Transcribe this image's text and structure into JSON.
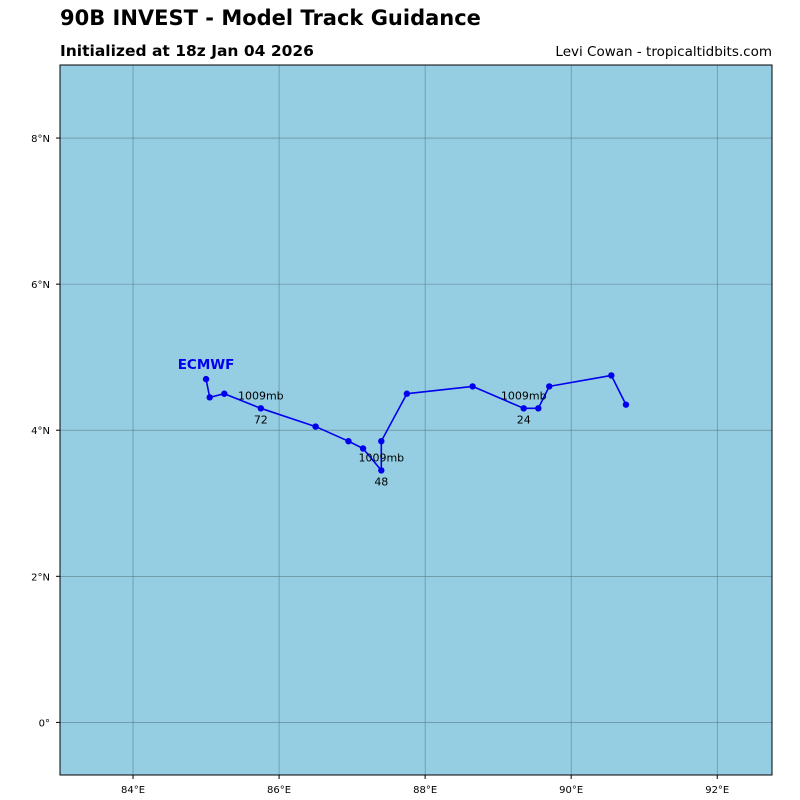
{
  "header": {
    "title": "90B INVEST - Model Track Guidance",
    "initialized": "Initialized at 18z Jan 04 2026",
    "credit": "Levi Cowan - tropicaltidbits.com"
  },
  "colors": {
    "ocean": "#95cee3",
    "track": "#0000ee",
    "grid": "#5f7f8a"
  },
  "chart_data": {
    "type": "map-track",
    "lon_range": [
      83.0,
      92.75
    ],
    "lat_range": [
      -0.72,
      9.0
    ],
    "lon_ticks": [
      {
        "value": 84,
        "label": "84°E"
      },
      {
        "value": 86,
        "label": "86°E"
      },
      {
        "value": 88,
        "label": "88°E"
      },
      {
        "value": 90,
        "label": "90°E"
      },
      {
        "value": 92,
        "label": "92°E"
      }
    ],
    "lat_ticks": [
      {
        "value": 0,
        "label": "0°"
      },
      {
        "value": 2,
        "label": "2°N"
      },
      {
        "value": 4,
        "label": "4°N"
      },
      {
        "value": 6,
        "label": "6°N"
      },
      {
        "value": 8,
        "label": "8°N"
      }
    ],
    "tracks": [
      {
        "model": "ECMWF",
        "points": [
          [
            90.75,
            4.35
          ],
          [
            90.55,
            4.75
          ],
          [
            89.7,
            4.6
          ],
          [
            89.55,
            4.3
          ],
          [
            89.35,
            4.3
          ],
          [
            88.65,
            4.6
          ],
          [
            87.75,
            4.5
          ],
          [
            87.4,
            3.85
          ],
          [
            87.4,
            3.45
          ],
          [
            87.15,
            3.75
          ],
          [
            86.95,
            3.85
          ],
          [
            86.5,
            4.05
          ],
          [
            85.75,
            4.3
          ],
          [
            85.25,
            4.5
          ],
          [
            85.05,
            4.45
          ],
          [
            85.0,
            4.7
          ]
        ],
        "annotations": [
          {
            "lon": 89.35,
            "lat": 4.3,
            "pressure": "1009mb",
            "hour": "24"
          },
          {
            "lon": 87.4,
            "lat": 3.45,
            "pressure": "1009mb",
            "hour": "48"
          },
          {
            "lon": 85.75,
            "lat": 4.3,
            "pressure": "1009mb",
            "hour": "72"
          }
        ]
      }
    ]
  }
}
